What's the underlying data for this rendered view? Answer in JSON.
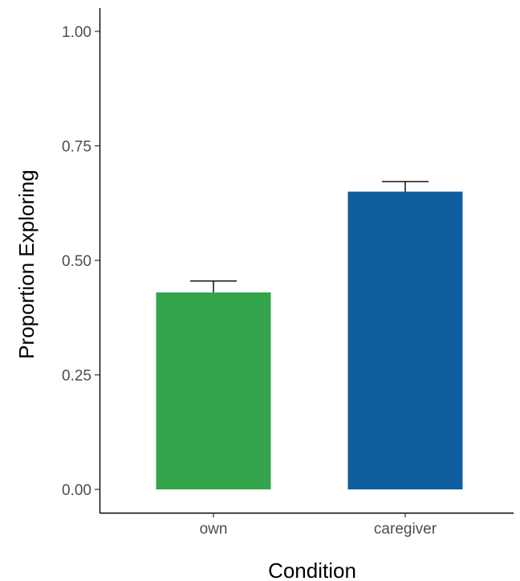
{
  "chart_data": {
    "type": "bar",
    "title": "",
    "xlabel": "Condition",
    "ylabel": "Proportion Exploring",
    "categories": [
      "own",
      "caregiver"
    ],
    "values": [
      0.43,
      0.65
    ],
    "error_upper": [
      0.455,
      0.672
    ],
    "ylim": [
      0,
      1.05
    ],
    "yticks": [
      0.0,
      0.25,
      0.5,
      0.75,
      1.0
    ],
    "ytick_labels": [
      "0.00",
      "0.25",
      "0.50",
      "0.75",
      "1.00"
    ],
    "bar_colors": [
      "#34a44c",
      "#0f5d9f"
    ],
    "grid": false,
    "legend": "none"
  }
}
